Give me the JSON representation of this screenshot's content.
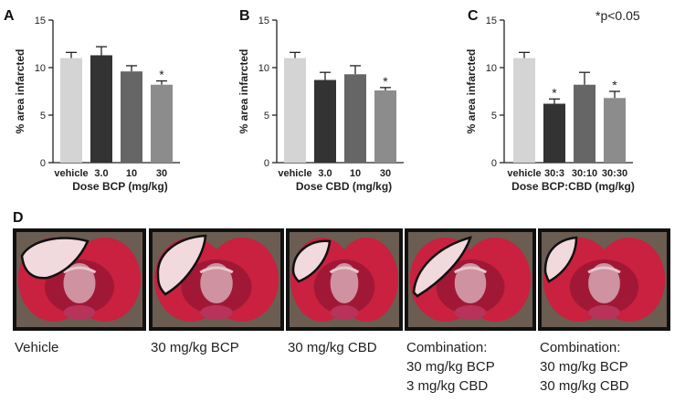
{
  "significance_note": "*p<0.05",
  "panel_d": {
    "letter": "D",
    "images": [
      {
        "caption_lines": [
          "Vehicle"
        ]
      },
      {
        "caption_lines": [
          "30 mg/kg BCP"
        ]
      },
      {
        "caption_lines": [
          "30 mg/kg CBD"
        ]
      },
      {
        "caption_lines": [
          "Combination:",
          "30 mg/kg BCP",
          "3 mg/kg CBD"
        ]
      },
      {
        "caption_lines": [
          "Combination:",
          "30 mg/kg BCP",
          "30 mg/kg CBD"
        ]
      }
    ]
  },
  "colors": {
    "vehicle": "#d4d4d4",
    "dark": "#333333",
    "mid": "#666666",
    "light": "#8c8c8c",
    "tissue_red": "#c9213f",
    "infarct_pale": "#f2d9dd"
  },
  "chart_data": [
    {
      "panel": "A",
      "type": "bar",
      "categories": [
        "vehicle",
        "3.0",
        "10",
        "30"
      ],
      "values": [
        11.0,
        11.3,
        9.6,
        8.2
      ],
      "errors": [
        0.6,
        0.9,
        0.6,
        0.4
      ],
      "significant": [
        false,
        false,
        false,
        true
      ],
      "bar_colors": [
        "#d4d4d4",
        "#333333",
        "#666666",
        "#8c8c8c"
      ],
      "xlabel": "Dose BCP (mg/kg)",
      "ylabel": "% area infarcted",
      "ylim": [
        0,
        15
      ],
      "yticks": [
        0,
        5,
        10,
        15
      ]
    },
    {
      "panel": "B",
      "type": "bar",
      "categories": [
        "vehicle",
        "3.0",
        "10",
        "30"
      ],
      "values": [
        11.0,
        8.7,
        9.3,
        7.6
      ],
      "errors": [
        0.6,
        0.8,
        0.9,
        0.3
      ],
      "significant": [
        false,
        false,
        false,
        true
      ],
      "bar_colors": [
        "#d4d4d4",
        "#333333",
        "#666666",
        "#8c8c8c"
      ],
      "xlabel": "Dose CBD (mg/kg)",
      "ylabel": "% area infarcted",
      "ylim": [
        0,
        15
      ],
      "yticks": [
        0,
        5,
        10,
        15
      ]
    },
    {
      "panel": "C",
      "type": "bar",
      "categories": [
        "vehicle",
        "30:3",
        "30:10",
        "30:30"
      ],
      "values": [
        11.0,
        6.2,
        8.2,
        6.8
      ],
      "errors": [
        0.6,
        0.5,
        1.3,
        0.7
      ],
      "significant": [
        false,
        true,
        false,
        true
      ],
      "bar_colors": [
        "#d4d4d4",
        "#333333",
        "#666666",
        "#8c8c8c"
      ],
      "xlabel": "Dose BCP:CBD (mg/kg)",
      "ylabel": "% area infarcted",
      "ylim": [
        0,
        15
      ],
      "yticks": [
        0,
        5,
        10,
        15
      ]
    }
  ]
}
